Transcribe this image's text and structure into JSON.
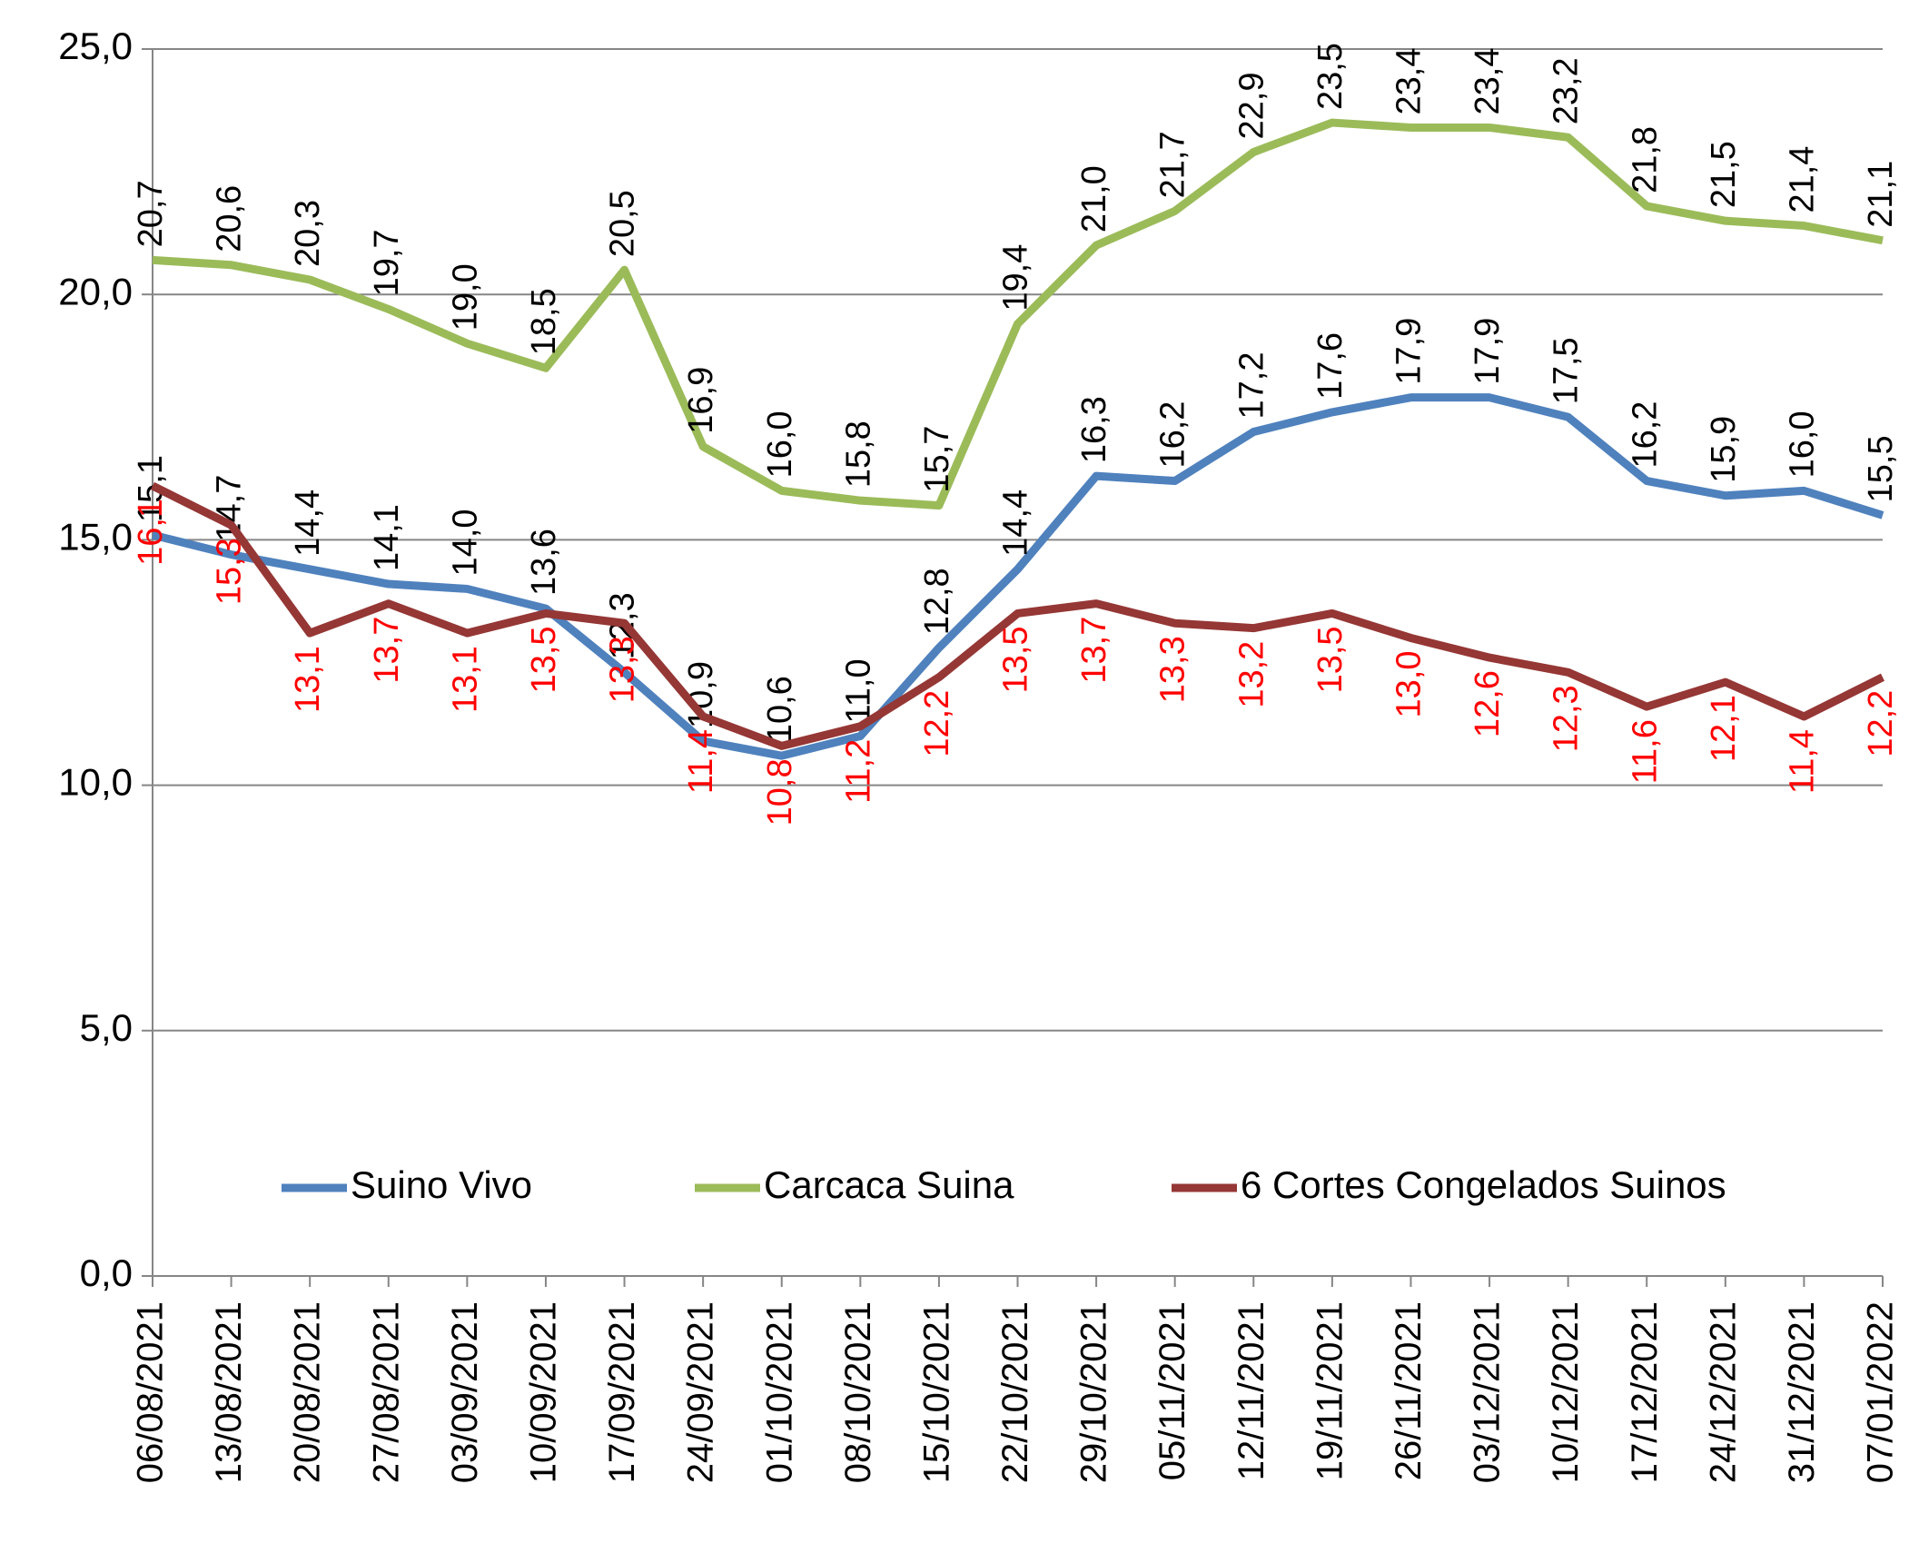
{
  "chart_data": {
    "type": "line",
    "categories": [
      "06/08/2021",
      "13/08/2021",
      "20/08/2021",
      "27/08/2021",
      "03/09/2021",
      "10/09/2021",
      "17/09/2021",
      "24/09/2021",
      "01/10/2021",
      "08/10/2021",
      "15/10/2021",
      "22/10/2021",
      "29/10/2021",
      "05/11/2021",
      "12/11/2021",
      "19/11/2021",
      "26/11/2021",
      "03/12/2021",
      "10/12/2021",
      "17/12/2021",
      "24/12/2021",
      "31/12/2021",
      "07/01/2022"
    ],
    "series": [
      {
        "name": "Suino Vivo",
        "color": "#4f81bd",
        "label_color": "#000000",
        "label_side": "above",
        "values": [
          15.1,
          14.7,
          14.4,
          14.1,
          14.0,
          13.6,
          12.3,
          10.9,
          10.6,
          11.0,
          12.8,
          14.4,
          16.3,
          16.2,
          17.2,
          17.6,
          17.9,
          17.9,
          17.5,
          16.2,
          15.9,
          16.0,
          15.5
        ],
        "value_labels": [
          "15,1",
          "14,7",
          "14,4",
          "14,1",
          "14,0",
          "13,6",
          "12,3",
          "10,9",
          "10,6",
          "11,0",
          "12,8",
          "14,4",
          "16,3",
          "16,2",
          "17,2",
          "17,6",
          "17,9",
          "17,9",
          "17,5",
          "16,2",
          "15,9",
          "16,0",
          "15,5"
        ]
      },
      {
        "name": "Carcaca Suina",
        "color": "#9bbb59",
        "label_color": "#000000",
        "label_side": "above",
        "values": [
          20.7,
          20.6,
          20.3,
          19.7,
          19.0,
          18.5,
          20.5,
          16.9,
          16.0,
          15.8,
          15.7,
          19.4,
          21.0,
          21.7,
          22.9,
          23.5,
          23.4,
          23.4,
          23.2,
          21.8,
          21.5,
          21.4,
          21.1
        ],
        "value_labels": [
          "20,7",
          "20,6",
          "20,3",
          "19,7",
          "19,0",
          "18,5",
          "20,5",
          "16,9",
          "16,0",
          "15,8",
          "15,7",
          "19,4",
          "21,0",
          "21,7",
          "22,9",
          "23,5",
          "23,4",
          "23,4",
          "23,2",
          "21,8",
          "21,5",
          "21,4",
          "21,1"
        ]
      },
      {
        "name": "6 Cortes Congelados Suinos",
        "color": "#953735",
        "label_color": "#ff0000",
        "label_side": "below",
        "values": [
          16.1,
          15.3,
          13.1,
          13.7,
          13.1,
          13.5,
          13.3,
          11.4,
          10.8,
          11.2,
          12.2,
          13.5,
          13.7,
          13.3,
          13.2,
          13.5,
          13.0,
          12.6,
          12.3,
          11.6,
          12.1,
          11.4,
          12.2
        ],
        "value_labels": [
          "16,1",
          "15,3",
          "13,1",
          "13,7",
          "13,1",
          "13,5",
          "13,3",
          "11,4",
          "10,8",
          "11,2",
          "12,2",
          "13,5",
          "13,7",
          "13,3",
          "13,2",
          "13,5",
          "13,0",
          "12,6",
          "12,3",
          "11,6",
          "12,1",
          "11,4",
          "12,2"
        ]
      }
    ],
    "ylim": [
      0,
      25
    ],
    "yticks": [
      {
        "value": 0,
        "label": "0,0"
      },
      {
        "value": 5,
        "label": "5,0"
      },
      {
        "value": 10,
        "label": "10,0"
      },
      {
        "value": 15,
        "label": "15,0"
      },
      {
        "value": 20,
        "label": "20,0"
      },
      {
        "value": 25,
        "label": "25,0"
      }
    ],
    "grid": true,
    "legend": "inside-bottom"
  }
}
